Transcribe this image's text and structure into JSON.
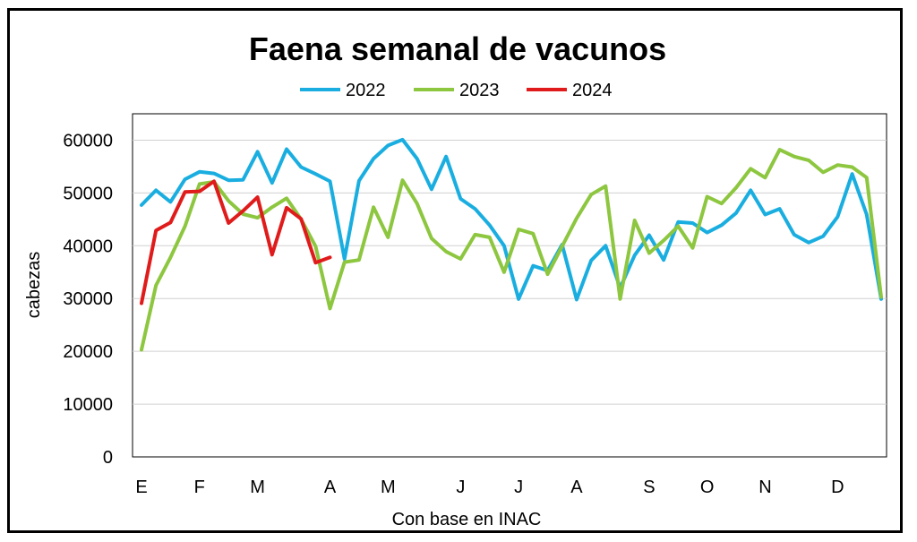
{
  "chart_data": {
    "type": "line",
    "title": "Faena semanal de vacunos",
    "ylabel": "cabezas",
    "xlabel": "Con base en INAC",
    "ylim": [
      0,
      65000
    ],
    "yticks": [
      0,
      10000,
      20000,
      30000,
      40000,
      50000,
      60000
    ],
    "xlim": [
      1,
      52
    ],
    "month_ticks": [
      {
        "label": "E",
        "week": 1
      },
      {
        "label": "F",
        "week": 5
      },
      {
        "label": "M",
        "week": 9
      },
      {
        "label": "A",
        "week": 14
      },
      {
        "label": "M",
        "week": 18
      },
      {
        "label": "J",
        "week": 23
      },
      {
        "label": "J",
        "week": 27
      },
      {
        "label": "A",
        "week": 31
      },
      {
        "label": "S",
        "week": 36
      },
      {
        "label": "O",
        "week": 40
      },
      {
        "label": "N",
        "week": 44
      },
      {
        "label": "D",
        "week": 49
      }
    ],
    "grid": true,
    "legend_position": "top-center",
    "series": [
      {
        "name": "2022",
        "color": "#1aaee0",
        "values": [
          47700,
          50500,
          48300,
          52600,
          54000,
          53700,
          52400,
          52500,
          57800,
          51900,
          58300,
          54900,
          53600,
          52200,
          37500,
          52300,
          56500,
          59000,
          60100,
          56500,
          50700,
          56900,
          48900,
          47000,
          43900,
          40000,
          29900,
          36200,
          35300,
          40200,
          29800,
          37200,
          40000,
          32000,
          38200,
          42000,
          37300,
          44500,
          44300,
          42500,
          43900,
          46200,
          50500,
          45900,
          47000,
          42100,
          40600,
          41800,
          45500,
          53600,
          45900,
          29900
        ]
      },
      {
        "name": "2023",
        "color": "#8dc63f",
        "values": [
          20300,
          32500,
          37800,
          43700,
          51700,
          52100,
          48500,
          46000,
          45300,
          47300,
          49000,
          45000,
          39900,
          28100,
          36900,
          37300,
          47300,
          41600,
          52400,
          48000,
          41400,
          38900,
          37500,
          42100,
          41600,
          35000,
          43100,
          42300,
          34600,
          39900,
          45200,
          49700,
          51300,
          29900,
          44800,
          38600,
          41000,
          43700,
          39600,
          49300,
          48000,
          51000,
          54600,
          52900,
          58200,
          56900,
          56200,
          53900,
          55300,
          54900,
          52900,
          30300
        ]
      },
      {
        "name": "2024",
        "color": "#e01b1b",
        "values": [
          29100,
          42900,
          44400,
          50200,
          50300,
          52200,
          44300,
          46600,
          49200,
          38300,
          47200,
          45100,
          36800,
          37800
        ]
      }
    ]
  }
}
